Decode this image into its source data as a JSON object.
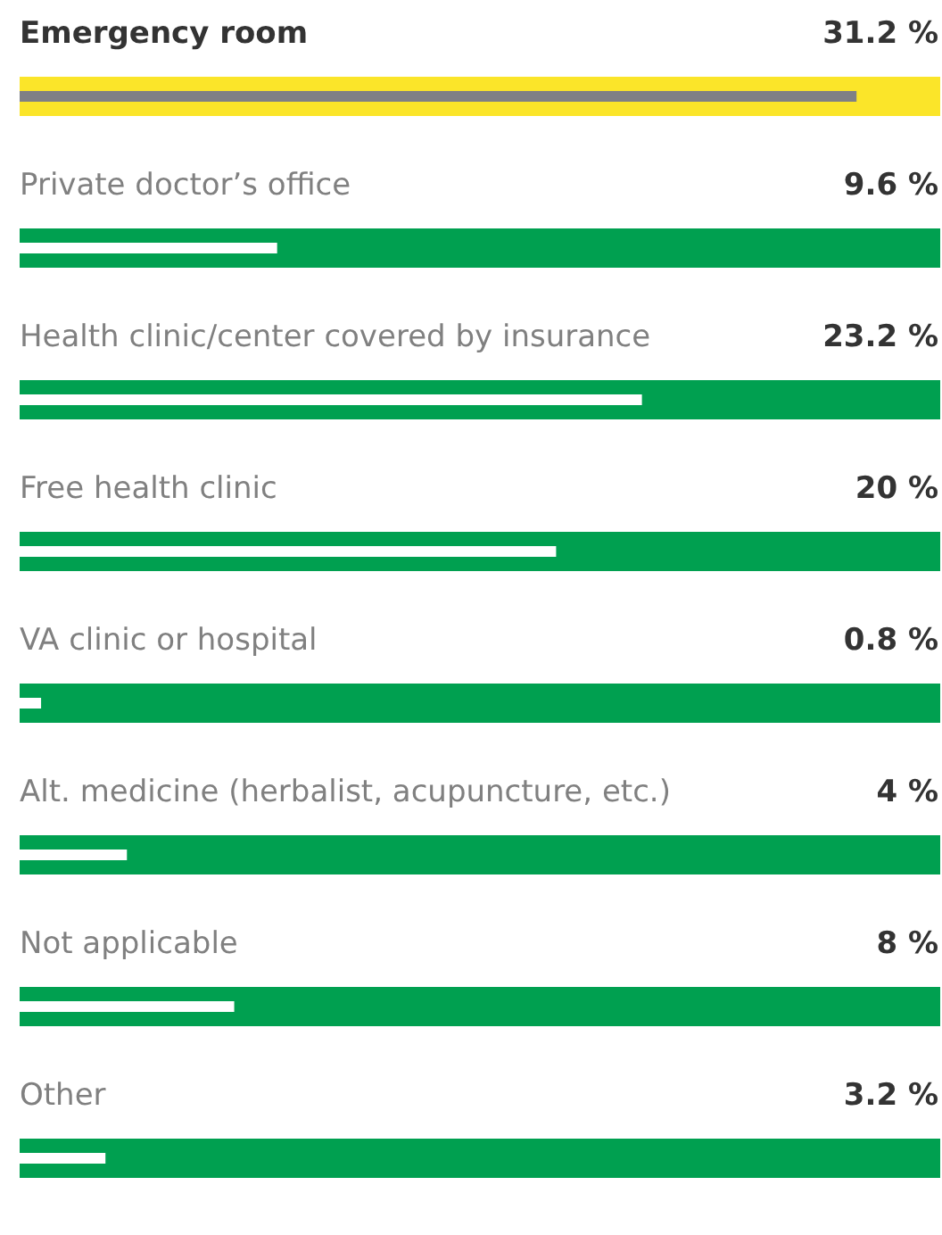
{
  "chart_data": {
    "type": "bar",
    "orientation": "horizontal",
    "categories": [
      "Emergency room",
      "Private doctor’s office",
      "Health clinic/center covered by insurance",
      "Free health clinic",
      "VA clinic or hospital",
      "Alt. medicine (herbalist, acupuncture, etc.)",
      "Not applicable",
      "Other"
    ],
    "values": [
      31.2,
      9.6,
      23.2,
      20,
      0.8,
      4,
      8,
      3.2
    ],
    "colors": [
      "#7f8085",
      "#ffffff",
      "#ffffff",
      "#ffffff",
      "#ffffff",
      "#ffffff",
      "#ffffff",
      "#ffffff"
    ],
    "value_labels": [
      "31.2 %",
      "9.6 %",
      "23.2 %",
      "20 %",
      "0.8 %",
      "4 %",
      "8 %",
      "3.2 %"
    ],
    "bands": [
      {
        "axis": "y",
        "from": "Emergency room",
        "to": "Emergency room",
        "color": "#fbe529"
      },
      {
        "axis": "y",
        "from": "Private doctor’s office",
        "to": "Private doctor’s office",
        "color": "#00a050"
      },
      {
        "axis": "y",
        "from": "Health clinic/center covered by insurance",
        "to": "Health clinic/center covered by insurance",
        "color": "#00a050"
      },
      {
        "axis": "y",
        "from": "Free health clinic",
        "to": "Free health clinic",
        "color": "#00a050"
      },
      {
        "axis": "y",
        "from": "VA clinic or hospital",
        "to": "VA clinic or hospital",
        "color": "#00a050"
      },
      {
        "axis": "y",
        "from": "Alt. medicine (herbalist, acupuncture, etc.)",
        "to": "Alt. medicine (herbalist, acupuncture, etc.)",
        "color": "#00a050"
      },
      {
        "axis": "y",
        "from": "Not applicable",
        "to": "Not applicable",
        "color": "#00a050"
      },
      {
        "axis": "y",
        "from": "Other",
        "to": "Other",
        "color": "#00a050"
      }
    ]
  }
}
